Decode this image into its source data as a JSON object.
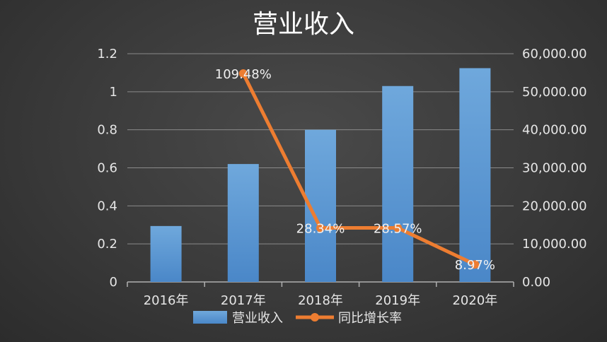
{
  "chart_data": {
    "type": "bar",
    "title": "营业收入",
    "categories": [
      "2016年",
      "2017年",
      "2018年",
      "2019年",
      "2020年"
    ],
    "series": [
      {
        "name": "营业收入",
        "type": "bar",
        "axis": "right",
        "values": [
          14700,
          31000,
          40000,
          51500,
          56200
        ],
        "color": "#5b9bd5"
      },
      {
        "name": "同比增长率",
        "type": "line",
        "axis": "right",
        "values": [
          null,
          54800,
          14200,
          14200,
          4600
        ],
        "labels": [
          "",
          "109.48%",
          "28.34%",
          "28.57%",
          "8.97%"
        ],
        "color": "#ed7d31"
      }
    ],
    "y_left": {
      "min": 0,
      "max": 1.2,
      "ticks": [
        "0",
        "0.2",
        "0.4",
        "0.6",
        "0.8",
        "1",
        "1.2"
      ]
    },
    "y_right": {
      "min": 0,
      "max": 60000,
      "ticks": [
        "0.00",
        "10,000.00",
        "20,000.00",
        "30,000.00",
        "40,000.00",
        "50,000.00",
        "60,000.00"
      ]
    },
    "grid": true,
    "legend": "bottom"
  }
}
